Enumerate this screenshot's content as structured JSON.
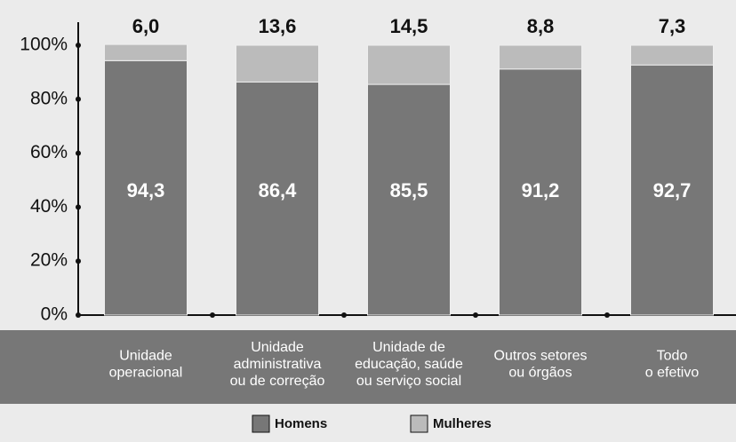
{
  "chart_data": {
    "type": "stacked_bar",
    "categories": [
      [
        "Unidade",
        "operacional"
      ],
      [
        "Unidade",
        "administrativa",
        "ou de correção"
      ],
      [
        "Unidade de",
        "educação, saúde",
        "ou serviço social"
      ],
      [
        "Outros setores",
        "ou órgãos"
      ],
      [
        "Todo",
        "o efetivo"
      ]
    ],
    "series": [
      {
        "name": "Homens",
        "color": "#777777",
        "values": [
          94.3,
          86.4,
          85.5,
          91.2,
          92.7
        ],
        "value_labels": [
          "94,3",
          "86,4",
          "85,5",
          "91,2",
          "92,7"
        ]
      },
      {
        "name": "Mulheres",
        "color": "#bbbbbb",
        "values": [
          6.0,
          13.6,
          14.5,
          8.8,
          7.3
        ],
        "value_labels": [
          "6,0",
          "13,6",
          "14,5",
          "8,8",
          "7,3"
        ]
      }
    ],
    "ylim": [
      0,
      100
    ],
    "yticks": [
      {
        "value": 0,
        "label": "0%"
      },
      {
        "value": 20,
        "label": "20%"
      },
      {
        "value": 40,
        "label": "40%"
      },
      {
        "value": 60,
        "label": "60%"
      },
      {
        "value": 80,
        "label": "80%"
      },
      {
        "value": 100,
        "label": "100%"
      }
    ],
    "legend": "bottom"
  }
}
